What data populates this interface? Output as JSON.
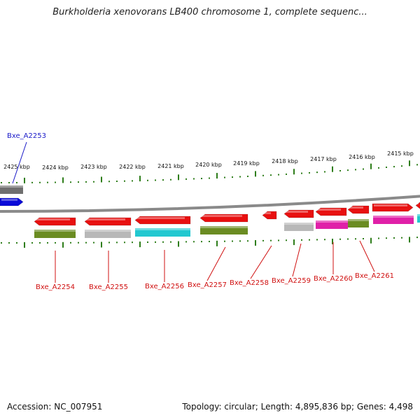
{
  "title": "Burkholderia xenovorans LB400 chromosome 1, complete sequenc...",
  "footer": {
    "accession": "Accession: NC_007951",
    "summary": "Topology: circular; Length: 4,895,836 bp; Genes: 4,498"
  },
  "scale_labels": [
    "2425 kbp",
    "2424 kbp",
    "2423 kbp",
    "2422 kbp",
    "2421 kbp",
    "2420 kbp",
    "2419 kbp",
    "2418 kbp",
    "2417 kbp",
    "2416 kbp",
    "2415 kbp"
  ],
  "genes": [
    {
      "label": "Bxe_A2253",
      "strand": "+",
      "color": "#0a0ad8",
      "sub_color": "#6f6f6f",
      "label_color": "#1a1ac8"
    },
    {
      "label": "Bxe_A2254",
      "strand": "-",
      "color": "#e81010",
      "sub_color": "#6b8c22",
      "label_color": "#d01010"
    },
    {
      "label": "Bxe_A2255",
      "strand": "-",
      "color": "#e81010",
      "sub_color": "#b8b8b8",
      "label_color": "#d01010"
    },
    {
      "label": "Bxe_A2256",
      "strand": "-",
      "color": "#e81010",
      "sub_color": "#22c8d0",
      "label_color": "#d01010"
    },
    {
      "label": "Bxe_A2257",
      "strand": "-",
      "color": "#e81010",
      "sub_color": "#6b8c22",
      "label_color": "#d01010"
    },
    {
      "label": "Bxe_A2258",
      "strand": "-",
      "color": "#e81010",
      "sub_color": "",
      "label_color": "#d01010"
    },
    {
      "label": "Bxe_A2259",
      "strand": "-",
      "color": "#e81010",
      "sub_color": "#b8b8b8",
      "label_color": "#d01010"
    },
    {
      "label": "Bxe_A2260",
      "strand": "-",
      "color": "#e81010",
      "sub_color": "#e020a8",
      "label_color": "#d01010"
    },
    {
      "label": "Bxe_A2261",
      "strand": "-",
      "color": "#e81010",
      "sub_color": "#6b8c22",
      "label_color": "#d01010"
    },
    {
      "label": "",
      "strand": "+",
      "color": "#e81010",
      "sub_color": "#e020a8"
    },
    {
      "label": "",
      "strand": "-",
      "color": "#e81010",
      "sub_color": "#22c8d0"
    }
  ],
  "colors": {
    "backbone": "#8a8a8a",
    "ticks": "#2e7d1a"
  }
}
